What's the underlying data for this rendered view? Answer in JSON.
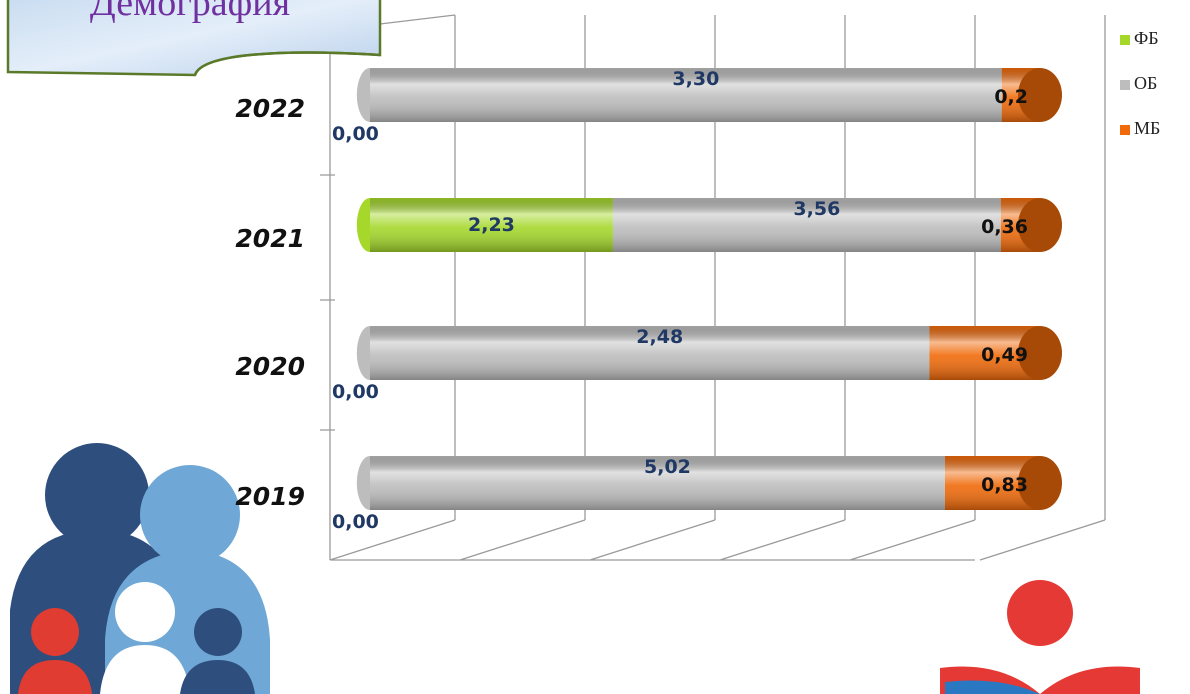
{
  "chart_data": {
    "type": "bar",
    "orientation": "horizontal",
    "stack": "percent",
    "title": "Демография",
    "categories": [
      "2022",
      "2021",
      "2020",
      "2019"
    ],
    "series": [
      {
        "name": "ФБ",
        "color": "#a5d82b",
        "values": [
          0,
          2.23,
          0,
          0
        ],
        "value_labels": [
          "0,00",
          "2,23",
          "0,00",
          "0,00"
        ]
      },
      {
        "name": "ОБ",
        "color": "#bdbdbd",
        "values": [
          3.3,
          3.56,
          2.48,
          5.02
        ],
        "value_labels": [
          "3,30",
          "3,56",
          "2,48",
          "5,02"
        ]
      },
      {
        "name": "МБ",
        "color": "#f06a0a",
        "values": [
          0.2,
          0.36,
          0.49,
          0.83
        ],
        "value_labels": [
          "0,2",
          "0,36",
          "0,49",
          "0,83"
        ]
      }
    ],
    "legend": "top-right"
  }
}
